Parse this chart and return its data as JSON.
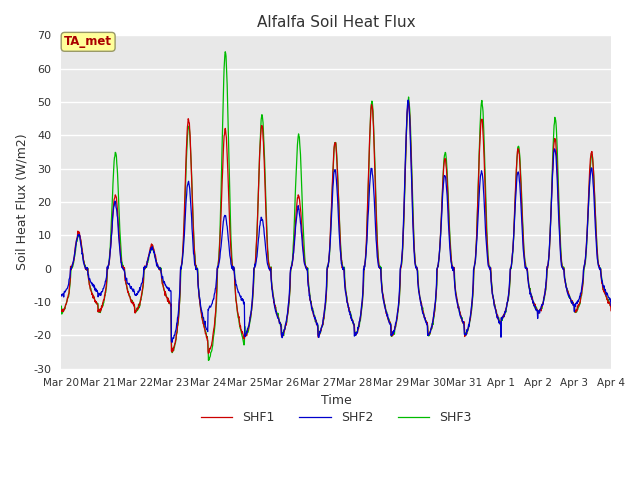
{
  "title": "Alfalfa Soil Heat Flux",
  "ylabel": "Soil Heat Flux (W/m2)",
  "xlabel": "Time",
  "ylim": [
    -30,
    70
  ],
  "fig_bg_color": "#ffffff",
  "plot_bg_color": "#e8e8e8",
  "shf1_color": "#cc0000",
  "shf2_color": "#0000cc",
  "shf3_color": "#00bb00",
  "xtick_labels": [
    "Mar 20",
    "Mar 21",
    "Mar 22",
    "Mar 23",
    "Mar 24",
    "Mar 25",
    "Mar 26",
    "Mar 27",
    "Mar 28",
    "Mar 29",
    "Mar 30",
    "Mar 31",
    "Apr 1",
    "Apr 2",
    "Apr 3",
    "Apr 4"
  ],
  "annotation_text": "TA_met",
  "annotation_color": "#aa0000",
  "annotation_bg": "#ffff99",
  "legend_labels": [
    "SHF1",
    "SHF2",
    "SHF3"
  ],
  "ytick_vals": [
    -30,
    -20,
    -10,
    0,
    10,
    20,
    30,
    40,
    50,
    60,
    70
  ],
  "n_days": 15,
  "pts_per_day": 96,
  "day_amps_shf1": [
    11,
    22,
    7,
    45,
    42,
    43,
    22,
    38,
    49,
    50,
    33,
    45,
    36,
    39,
    35
  ],
  "day_amps_shf2": [
    10,
    20,
    6,
    26,
    16,
    15,
    18,
    30,
    30,
    50,
    28,
    29,
    29,
    36,
    30
  ],
  "day_amps_shf3": [
    10,
    35,
    6,
    43,
    65,
    46,
    40,
    38,
    50,
    51,
    35,
    50,
    37,
    45,
    34
  ],
  "night_troughs_shf1": [
    -13,
    -13,
    -13,
    -25,
    -25,
    -20,
    -20,
    -20,
    -20,
    -20,
    -20,
    -20,
    -15,
    -13,
    -13
  ],
  "night_troughs_shf2": [
    -8,
    -8,
    -8,
    -22,
    -12,
    -20,
    -20,
    -20,
    -20,
    -20,
    -20,
    -20,
    -15,
    -13,
    -11
  ],
  "night_troughs_shf3": [
    -13,
    -13,
    -13,
    -25,
    -27,
    -20,
    -20,
    -20,
    -20,
    -20,
    -20,
    -20,
    -15,
    -13,
    -13
  ]
}
